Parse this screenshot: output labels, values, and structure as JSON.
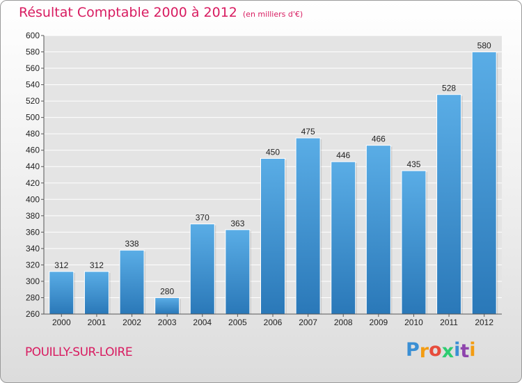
{
  "chart_data": {
    "type": "bar",
    "title": "Résultat Comptable 2000 à 2012",
    "subtitle": "(en milliers d'€)",
    "categories": [
      "2000",
      "2001",
      "2002",
      "2003",
      "2004",
      "2005",
      "2006",
      "2007",
      "2008",
      "2009",
      "2010",
      "2011",
      "2012"
    ],
    "values": [
      312,
      312,
      338,
      280,
      370,
      363,
      450,
      475,
      446,
      466,
      435,
      528,
      580
    ],
    "ylim": [
      260,
      600
    ],
    "yticks": [
      260,
      280,
      300,
      320,
      340,
      360,
      380,
      400,
      420,
      440,
      460,
      480,
      500,
      520,
      540,
      560,
      580,
      600
    ],
    "grid": true,
    "bar_color": "#3a8fd4"
  },
  "commune": "POUILLY-SUR-LOIRE",
  "logo": {
    "text": "Proxiti",
    "letter_colors": [
      "#3a8fd4",
      "#f39c12",
      "#e74c3c",
      "#2ecc71",
      "#3a8fd4",
      "#8e44ad",
      "#f39c12"
    ]
  },
  "colors": {
    "title": "#d81b60",
    "grid": "#ffffff",
    "background": "#e6e6e6"
  }
}
